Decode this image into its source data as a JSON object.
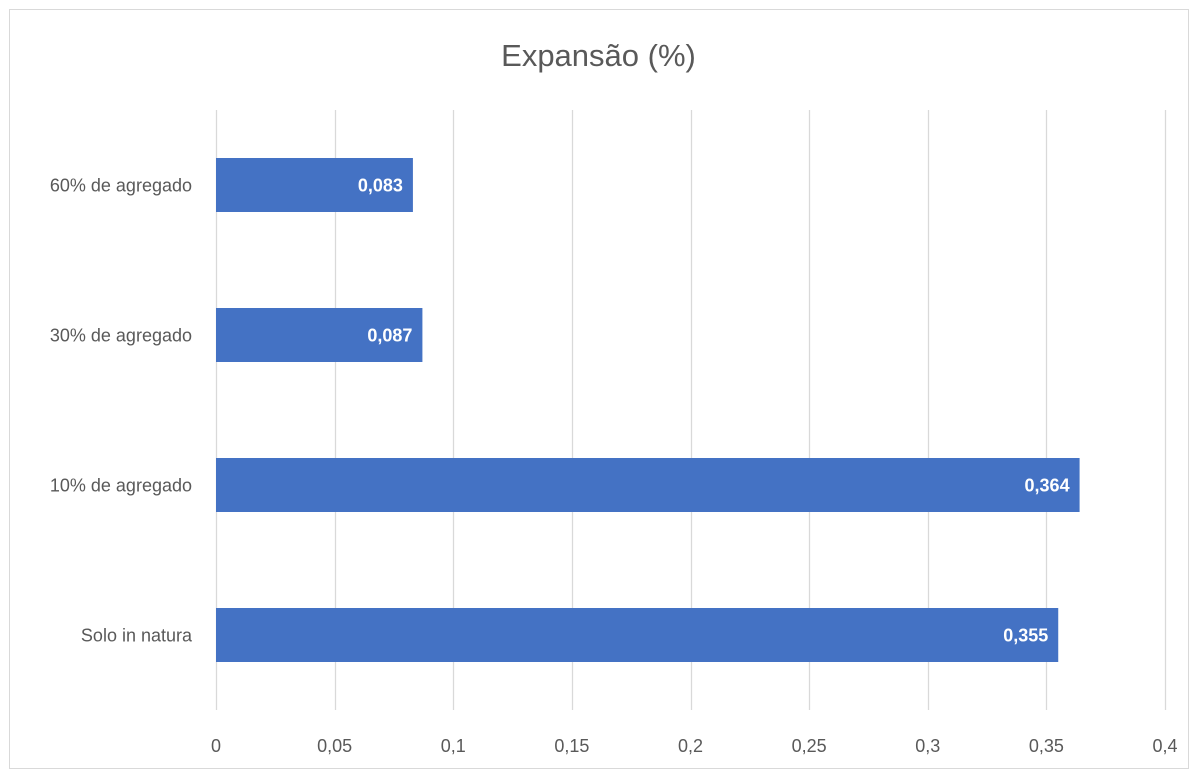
{
  "chart_data": {
    "type": "bar",
    "orientation": "horizontal",
    "title": "Expansão (%)",
    "categories": [
      "Solo in natura",
      "10% de agregado",
      "30% de agregado",
      "60% de agregado"
    ],
    "values": [
      0.355,
      0.364,
      0.087,
      0.083
    ],
    "data_labels": [
      "0,355",
      "0,364",
      "0,087",
      "0,083"
    ],
    "x_ticks": [
      0,
      0.05,
      0.1,
      0.15,
      0.2,
      0.25,
      0.3,
      0.35,
      0.4
    ],
    "x_tick_labels": [
      "0",
      "0,05",
      "0,1",
      "0,15",
      "0,2",
      "0,25",
      "0,3",
      "0,35",
      "0,4"
    ],
    "xlim": [
      0,
      0.4
    ],
    "xlabel": "",
    "ylabel": "",
    "grid": true,
    "legend": "none",
    "bar_color": "#4472c4",
    "grid_color": "#d9d9d9"
  }
}
